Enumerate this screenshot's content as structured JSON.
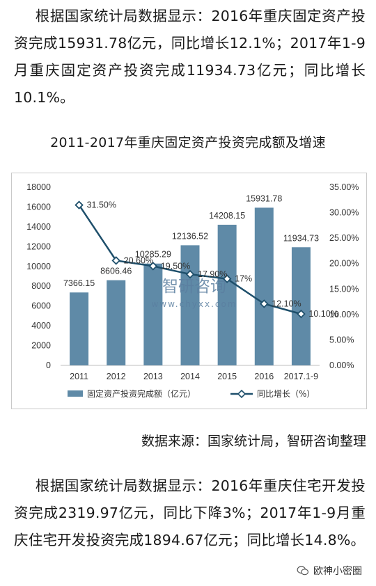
{
  "article": {
    "paragraph_1": "根据国家统计局数据显示：2016年重庆固定资产投资完成15931.78亿元，同比增长12.1%；2017年1-9月重庆固定资产投资完成11934.73亿元；同比增长10.1%。",
    "chart_title": "2011-2017年重庆固定资产投资完成额及增速",
    "source": "数据来源：国家统计局，智研咨询整理",
    "paragraph_2": "根据国家统计局数据显示：2016年重庆住宅开发投资完成2319.97亿元，同比下降3%；2017年1-9月重庆住宅开发投资完成1894.67亿元；同比增长14.8%。",
    "watermark_cn": "智研咨询",
    "watermark_url": "www.chyxx.com",
    "footer_brand": "欧神小密圈"
  },
  "colors": {
    "bar": "#5f8aa7",
    "line": "#1e4f6b",
    "marker_fill": "#ffffff"
  },
  "chart_data": {
    "type": "bar",
    "categories": [
      "2011",
      "2012",
      "2013",
      "2014",
      "2015",
      "2016",
      "2017.1-9"
    ],
    "series": [
      {
        "name": "固定资产投资完成额（亿元）",
        "type": "bar",
        "axis": "left",
        "values": [
          7366.15,
          8606.46,
          10285.29,
          12136.52,
          14208.15,
          15931.78,
          11934.73
        ],
        "labels": [
          "7366.15",
          "8606.46",
          "10285.29",
          "12136.52",
          "14208.15",
          "15931.78",
          "11934.73"
        ]
      },
      {
        "name": "同比增长（%）",
        "type": "line",
        "axis": "right",
        "values": [
          31.5,
          20.6,
          19.5,
          17.9,
          17,
          12.1,
          10.1
        ],
        "labels": [
          "31.50%",
          "20.60%",
          "19.50%",
          "17.90%",
          "17%",
          "12.10%",
          "10.10%"
        ]
      }
    ],
    "y_left": {
      "min": 0,
      "max": 18000,
      "ticks": [
        "0",
        "2000",
        "4000",
        "6000",
        "8000",
        "10000",
        "12000",
        "14000",
        "16000",
        "18000"
      ]
    },
    "y_right": {
      "min": 0,
      "max": 35,
      "ticks": [
        "0.00%",
        "5.00%",
        "10.00%",
        "15.00%",
        "20.00%",
        "25.00%",
        "30.00%",
        "35.00%"
      ]
    },
    "grid": false,
    "legend_position": "bottom"
  }
}
